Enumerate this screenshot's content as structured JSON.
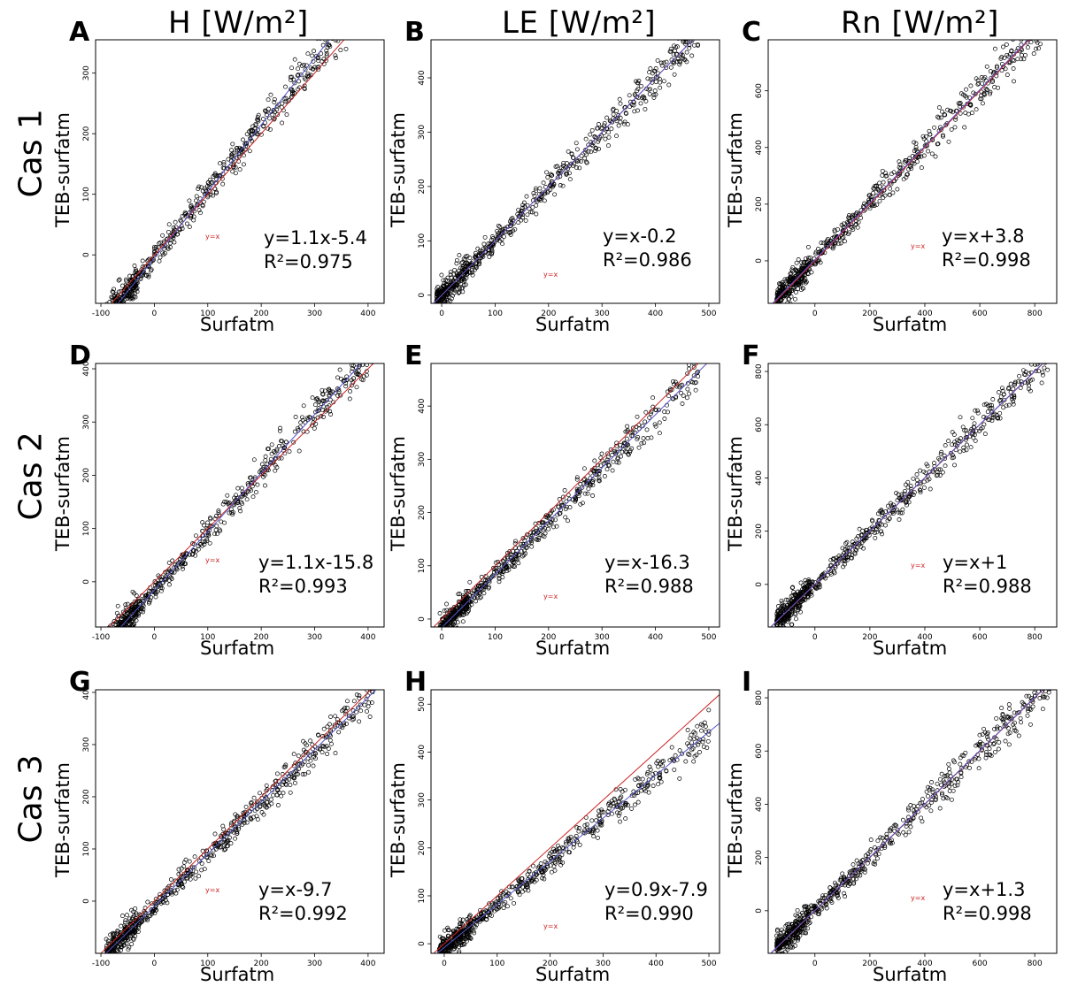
{
  "columns": [
    "H [W/m²]",
    "LE [W/m²]",
    "Rn [W/m²]"
  ],
  "rows": [
    "Cas 1",
    "Cas 2",
    "Cas 3"
  ],
  "colors": {
    "points": "#000000",
    "one_to_one": "#cc2222",
    "regression": "#5555cc"
  },
  "chart_data": [
    {
      "panel": "A",
      "type": "scatter",
      "xlabel": "Surfatm",
      "ylabel": "TEB-surfatm",
      "xticks": [
        -100,
        0,
        100,
        200,
        300,
        400
      ],
      "yticks": [
        0,
        100,
        200,
        300
      ],
      "xlim": [
        -110,
        430
      ],
      "ylim": [
        -80,
        355
      ],
      "fit": {
        "slope": 1.1,
        "intercept": -5.4
      },
      "equation": "y=1.1x-5.4",
      "r2": "R²=0.975",
      "ref_label": "y=x",
      "x_min": -90,
      "x_max": 395
    },
    {
      "panel": "B",
      "type": "scatter",
      "xlabel": "Surfatm",
      "ylabel": "TEB-surfatm",
      "xticks": [
        0,
        100,
        200,
        300,
        400,
        500
      ],
      "yticks": [
        0,
        100,
        200,
        300,
        400
      ],
      "xlim": [
        -20,
        520
      ],
      "ylim": [
        -15,
        470
      ],
      "fit": {
        "slope": 1.0,
        "intercept": -0.2
      },
      "equation": "y=x-0.2",
      "r2": "R²=0.986",
      "ref_label": "y=x",
      "x_min": -10,
      "x_max": 480
    },
    {
      "panel": "C",
      "type": "scatter",
      "xlabel": "Surfatm",
      "ylabel": "TEB-surfatm",
      "xticks": [
        0,
        200,
        400,
        600,
        800
      ],
      "yticks": [
        0,
        200,
        400,
        600
      ],
      "xlim": [
        -170,
        880
      ],
      "ylim": [
        -150,
        780
      ],
      "fit": {
        "slope": 1.0,
        "intercept": 3.8
      },
      "equation": "y=x+3.8",
      "r2": "R²=0.998",
      "ref_label": "y=x",
      "x_min": -140,
      "x_max": 850
    },
    {
      "panel": "D",
      "type": "scatter",
      "xlabel": "Surfatm",
      "ylabel": "TEB-surfatm",
      "xticks": [
        -100,
        0,
        100,
        200,
        300,
        400
      ],
      "yticks": [
        0,
        100,
        200,
        300,
        400
      ],
      "xlim": [
        -110,
        430
      ],
      "ylim": [
        -85,
        410
      ],
      "fit": {
        "slope": 1.1,
        "intercept": -15.8
      },
      "equation": "y=1.1x-15.8",
      "r2": "R²=0.993",
      "ref_label": "y=x",
      "x_min": -90,
      "x_max": 415
    },
    {
      "panel": "E",
      "type": "scatter",
      "xlabel": "Surfatm",
      "ylabel": "TEB-surfatm",
      "xticks": [
        0,
        100,
        200,
        300,
        400,
        500
      ],
      "yticks": [
        0,
        100,
        200,
        300,
        400
      ],
      "xlim": [
        -20,
        520
      ],
      "ylim": [
        -15,
        480
      ],
      "fit": {
        "slope": 1.0,
        "intercept": -16.3
      },
      "equation": "y=x-16.3",
      "r2": "R²=0.988",
      "ref_label": "y=x",
      "x_min": -5,
      "x_max": 480
    },
    {
      "panel": "F",
      "type": "scatter",
      "xlabel": "Surfatm",
      "ylabel": "TEB-surfatm",
      "xticks": [
        0,
        200,
        400,
        600,
        800
      ],
      "yticks": [
        0,
        200,
        400,
        600,
        800
      ],
      "xlim": [
        -170,
        880
      ],
      "ylim": [
        -160,
        830
      ],
      "fit": {
        "slope": 1.0,
        "intercept": 1.0
      },
      "equation": "y=x+1",
      "r2": "R²=0.988",
      "ref_label": "y=x",
      "x_min": -140,
      "x_max": 860
    },
    {
      "panel": "G",
      "type": "scatter",
      "xlabel": "Surfatm",
      "ylabel": "TEB-surfatm",
      "xticks": [
        -100,
        0,
        100,
        200,
        300,
        400
      ],
      "yticks": [
        0,
        100,
        200,
        300,
        400
      ],
      "xlim": [
        -110,
        430
      ],
      "ylim": [
        -100,
        405
      ],
      "fit": {
        "slope": 1.0,
        "intercept": -9.7
      },
      "equation": "y=x-9.7",
      "r2": "R²=0.992",
      "ref_label": "y=x",
      "x_min": -90,
      "x_max": 415
    },
    {
      "panel": "H",
      "type": "scatter",
      "xlabel": "Surfatm",
      "ylabel": "TEB-surfatm",
      "xticks": [
        0,
        100,
        200,
        300,
        400,
        500
      ],
      "yticks": [
        0,
        100,
        200,
        300,
        400,
        500
      ],
      "xlim": [
        -25,
        520
      ],
      "ylim": [
        -20,
        530
      ],
      "fit": {
        "slope": 0.9,
        "intercept": -7.9
      },
      "equation": "y=0.9x-7.9",
      "r2": "R²=0.990",
      "ref_label": "y=x",
      "x_min": -10,
      "x_max": 500
    },
    {
      "panel": "I",
      "type": "scatter",
      "xlabel": "Surfatm",
      "ylabel": "TEB-surfatm",
      "xticks": [
        0,
        200,
        400,
        600,
        800
      ],
      "yticks": [
        0,
        200,
        400,
        600,
        800
      ],
      "xlim": [
        -170,
        880
      ],
      "ylim": [
        -160,
        830
      ],
      "fit": {
        "slope": 1.0,
        "intercept": 1.3
      },
      "equation": "y=x+1.3",
      "r2": "R²=0.998",
      "ref_label": "y=x",
      "x_min": -140,
      "x_max": 860
    }
  ]
}
